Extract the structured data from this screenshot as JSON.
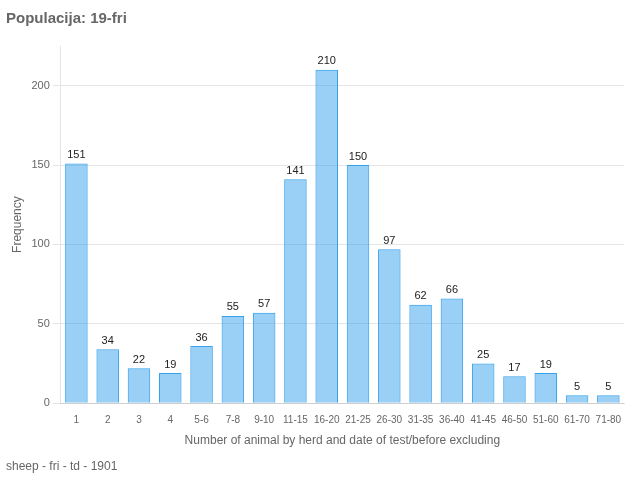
{
  "chart_data": {
    "type": "bar",
    "title": "Populacija: 19-fri",
    "footer": "sheep - fri - td - 1901",
    "xlabel": "Number of animal by herd and date of test/before excluding",
    "ylabel": "Frequency",
    "categories": [
      "1",
      "2",
      "3",
      "4",
      "5-6",
      "7-8",
      "9-10",
      "11-15",
      "16-20",
      "21-25",
      "26-30",
      "31-35",
      "36-40",
      "41-45",
      "46-50",
      "51-60",
      "61-70",
      "71-80"
    ],
    "values": [
      151,
      34,
      22,
      19,
      36,
      55,
      57,
      141,
      210,
      150,
      97,
      62,
      66,
      25,
      17,
      19,
      5,
      5
    ],
    "ylim": [
      0,
      225
    ],
    "yticks": [
      0,
      50,
      100,
      150,
      200
    ],
    "grid": true,
    "data_labels": true
  }
}
